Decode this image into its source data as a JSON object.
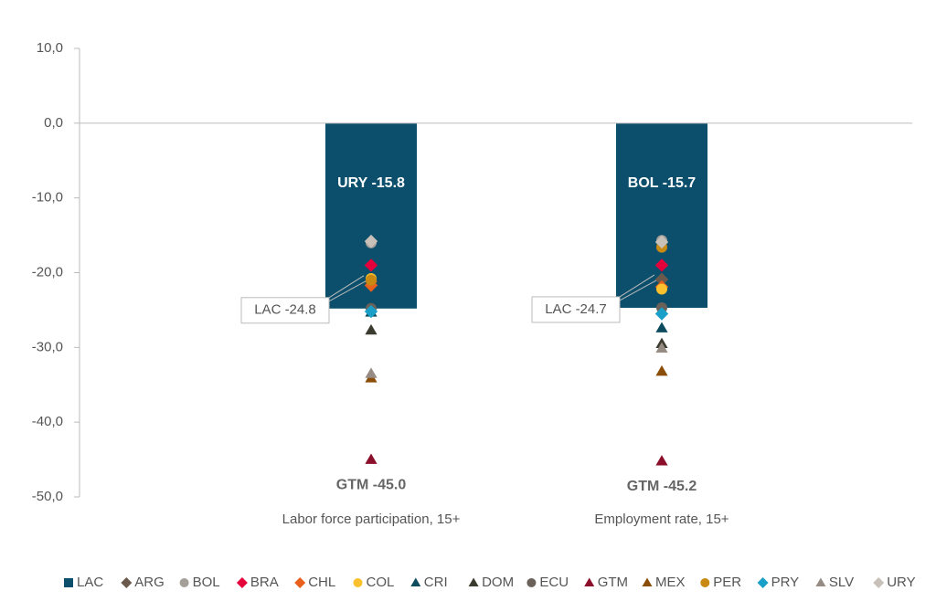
{
  "chart_data": {
    "type": "bar",
    "categories": [
      "Labor force participation, 15+",
      "Employment rate, 15+"
    ],
    "ylim": [
      -50,
      10
    ],
    "yticks": [
      {
        "value": -50,
        "label": "-50,0"
      },
      {
        "value": -40,
        "label": "-40,0"
      },
      {
        "value": -30,
        "label": "-30,0"
      },
      {
        "value": -20,
        "label": "-20,0"
      },
      {
        "value": -10,
        "label": "-10,0"
      },
      {
        "value": 0,
        "label": "0,0"
      },
      {
        "value": 10,
        "label": "10,0"
      }
    ],
    "legend": "bottom",
    "series": [
      {
        "name": "LAC",
        "color": "#0b4f6c",
        "marker": "square",
        "values": [
          -24.8,
          -24.7
        ],
        "value_labels": [
          "LAC -24.8",
          "LAC -24.7"
        ]
      },
      {
        "name": "ARG",
        "color": "#6b5a4c",
        "marker": "diamond",
        "values": [
          -21.2,
          -20.9
        ]
      },
      {
        "name": "BOL",
        "color": "#a59f9a",
        "marker": "circle",
        "values": [
          -16.0,
          -15.7
        ],
        "value_labels": [
          null,
          "BOL -15.7"
        ]
      },
      {
        "name": "BRA",
        "color": "#e4003b",
        "marker": "diamond",
        "values": [
          -19.0,
          -19.0
        ]
      },
      {
        "name": "CHL",
        "color": "#e8601c",
        "marker": "diamond",
        "values": [
          -21.7,
          -21.9
        ]
      },
      {
        "name": "COL",
        "color": "#fbc02d",
        "marker": "circle",
        "values": [
          -20.8,
          -22.2
        ]
      },
      {
        "name": "CRI",
        "color": "#0d4c5e",
        "marker": "triangle",
        "values": [
          -25.3,
          -27.4
        ]
      },
      {
        "name": "DOM",
        "color": "#3a3a2e",
        "marker": "triangle",
        "values": [
          -27.7,
          -29.5
        ]
      },
      {
        "name": "ECU",
        "color": "#6a625a",
        "marker": "circle",
        "values": [
          -24.8,
          -24.7
        ]
      },
      {
        "name": "GTM",
        "color": "#8b0f2a",
        "marker": "triangle",
        "values": [
          -45.0,
          -45.2
        ],
        "value_labels": [
          "GTM -45.0",
          "GTM -45.2"
        ]
      },
      {
        "name": "MEX",
        "color": "#8a4e08",
        "marker": "triangle",
        "values": [
          -34.1,
          -33.2
        ]
      },
      {
        "name": "PER",
        "color": "#c98a14",
        "marker": "circle",
        "values": [
          -21.0,
          -16.6
        ]
      },
      {
        "name": "PRY",
        "color": "#1aa0c8",
        "marker": "diamond",
        "values": [
          -25.2,
          -25.5
        ]
      },
      {
        "name": "SLV",
        "color": "#968c84",
        "marker": "triangle",
        "values": [
          -33.5,
          -30.1
        ]
      },
      {
        "name": "URY",
        "color": "#c7c1ba",
        "marker": "diamond",
        "values": [
          -15.8,
          -15.9
        ],
        "value_labels": [
          "URY -15.8",
          null
        ]
      }
    ]
  }
}
